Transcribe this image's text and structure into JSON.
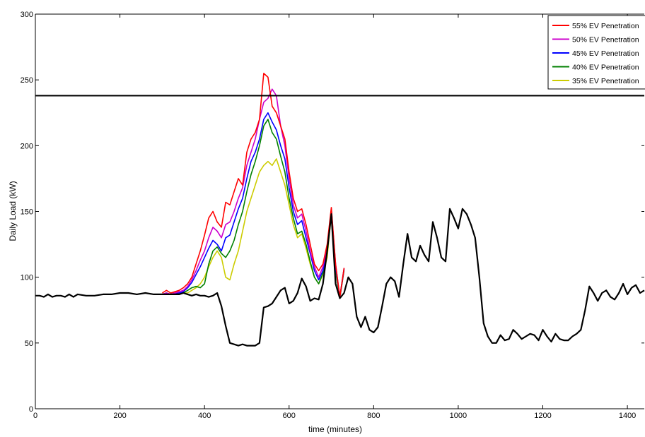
{
  "chart_data": {
    "type": "line",
    "title": "",
    "xlabel": "time (minutes)",
    "ylabel": "Daily Load (kW)",
    "xlim": [
      0,
      1440
    ],
    "ylim": [
      0,
      300
    ],
    "x_ticks": [
      0,
      200,
      400,
      600,
      800,
      1000,
      1200,
      1400
    ],
    "y_ticks": [
      0,
      50,
      100,
      150,
      200,
      250,
      300
    ],
    "grid": false,
    "legend_position": "top-right",
    "threshold": {
      "y": 238,
      "color": "#000000"
    },
    "base_series": {
      "color": "#000000",
      "x": [
        0,
        10,
        20,
        30,
        40,
        50,
        60,
        70,
        80,
        90,
        100,
        120,
        140,
        160,
        180,
        200,
        220,
        240,
        260,
        280,
        300,
        320,
        340,
        350,
        360,
        370,
        380,
        390,
        400,
        410,
        420,
        430,
        440,
        450,
        460,
        470,
        480,
        490,
        500,
        510,
        520,
        530,
        540,
        550,
        560,
        570,
        580,
        590,
        600,
        610,
        620,
        630,
        640,
        650,
        660,
        670,
        680,
        690,
        700,
        710,
        720,
        730,
        740,
        750,
        760,
        770,
        780,
        790,
        800,
        810,
        820,
        830,
        840,
        850,
        860,
        870,
        880,
        890,
        900,
        910,
        920,
        930,
        940,
        950,
        960,
        970,
        980,
        990,
        1000,
        1010,
        1020,
        1030,
        1040,
        1050,
        1060,
        1070,
        1080,
        1090,
        1100,
        1110,
        1120,
        1130,
        1140,
        1150,
        1160,
        1170,
        1180,
        1190,
        1200,
        1210,
        1220,
        1230,
        1240,
        1250,
        1260,
        1270,
        1280,
        1290,
        1300,
        1310,
        1320,
        1330,
        1340,
        1350,
        1360,
        1370,
        1380,
        1390,
        1400,
        1410,
        1420,
        1430,
        1440
      ],
      "y": [
        86,
        86,
        85,
        87,
        85,
        86,
        86,
        85,
        87,
        85,
        87,
        86,
        86,
        87,
        87,
        88,
        88,
        87,
        88,
        87,
        87,
        87,
        87,
        88,
        87,
        86,
        87,
        86,
        86,
        85,
        86,
        88,
        78,
        63,
        50,
        49,
        48,
        49,
        48,
        48,
        48,
        50,
        77,
        78,
        80,
        85,
        90,
        92,
        80,
        82,
        88,
        99,
        93,
        82,
        84,
        83,
        95,
        120,
        148,
        95,
        84,
        88,
        100,
        95,
        70,
        62,
        70,
        60,
        58,
        62,
        78,
        95,
        100,
        97,
        85,
        110,
        133,
        115,
        112,
        124,
        117,
        112,
        142,
        130,
        115,
        112,
        152,
        145,
        137,
        152,
        148,
        140,
        130,
        100,
        65,
        55,
        50,
        50,
        56,
        52,
        53,
        60,
        57,
        53,
        55,
        57,
        56,
        52,
        60,
        55,
        51,
        57,
        53,
        52,
        52,
        55,
        57,
        60,
        75,
        93,
        88,
        82,
        88,
        90,
        85,
        83,
        88,
        95,
        87,
        92,
        94,
        88,
        90
      ]
    },
    "series": [
      {
        "name": "55% EV Penetration",
        "color": "#ff0000",
        "x": [
          300,
          310,
          320,
          330,
          340,
          350,
          360,
          370,
          380,
          390,
          400,
          410,
          420,
          430,
          440,
          450,
          460,
          470,
          480,
          490,
          500,
          510,
          520,
          530,
          540,
          550,
          560,
          570,
          580,
          590,
          600,
          610,
          620,
          630,
          640,
          650,
          660,
          670,
          680,
          690,
          700,
          710,
          720,
          730
        ],
        "y": [
          88,
          90,
          88,
          89,
          90,
          92,
          95,
          100,
          110,
          120,
          132,
          145,
          150,
          142,
          138,
          157,
          155,
          165,
          175,
          170,
          195,
          205,
          210,
          220,
          255,
          252,
          230,
          225,
          215,
          205,
          180,
          160,
          150,
          152,
          140,
          125,
          110,
          105,
          110,
          125,
          153,
          110,
          85,
          107
        ]
      },
      {
        "name": "50% EV Penetration",
        "color": "#cc00cc",
        "x": [
          300,
          310,
          320,
          330,
          340,
          350,
          360,
          370,
          380,
          390,
          400,
          410,
          420,
          430,
          440,
          450,
          460,
          470,
          480,
          490,
          500,
          510,
          520,
          530,
          540,
          550,
          560,
          570,
          580,
          590,
          600,
          610,
          620,
          630,
          640,
          650,
          660,
          670,
          680,
          690,
          700,
          710,
          720,
          730
        ],
        "y": [
          87,
          88,
          87,
          88,
          89,
          90,
          93,
          98,
          105,
          113,
          120,
          130,
          138,
          135,
          130,
          140,
          142,
          150,
          160,
          168,
          185,
          195,
          205,
          220,
          233,
          236,
          243,
          238,
          215,
          200,
          175,
          155,
          145,
          148,
          135,
          120,
          108,
          100,
          108,
          122,
          150,
          110,
          85,
          107
        ]
      },
      {
        "name": "45% EV Penetration",
        "color": "#0000ff",
        "x": [
          300,
          310,
          320,
          330,
          340,
          350,
          360,
          370,
          380,
          390,
          400,
          410,
          420,
          430,
          440,
          450,
          460,
          470,
          480,
          490,
          500,
          510,
          520,
          530,
          540,
          550,
          560,
          570,
          580,
          590,
          600,
          610,
          620,
          630,
          640,
          650,
          660,
          670,
          680,
          690,
          700,
          710,
          720,
          730
        ],
        "y": [
          87,
          88,
          87,
          88,
          88,
          89,
          92,
          96,
          102,
          108,
          115,
          122,
          128,
          125,
          120,
          130,
          132,
          142,
          152,
          160,
          175,
          188,
          195,
          205,
          220,
          225,
          218,
          212,
          200,
          190,
          168,
          150,
          140,
          143,
          130,
          118,
          105,
          98,
          105,
          120,
          152,
          108,
          85,
          106
        ]
      },
      {
        "name": "40% EV Penetration",
        "color": "#008000",
        "x": [
          300,
          310,
          320,
          330,
          340,
          350,
          360,
          370,
          380,
          390,
          400,
          410,
          420,
          430,
          440,
          450,
          460,
          470,
          480,
          490,
          500,
          510,
          520,
          530,
          540,
          550,
          560,
          570,
          580,
          590,
          600,
          610,
          620,
          630,
          640,
          650,
          660,
          670,
          680,
          690,
          700,
          710,
          720,
          730
        ],
        "y": [
          87,
          88,
          87,
          87,
          88,
          88,
          90,
          92,
          93,
          92,
          95,
          110,
          120,
          123,
          118,
          115,
          120,
          128,
          140,
          150,
          165,
          178,
          188,
          200,
          215,
          220,
          210,
          205,
          192,
          180,
          160,
          145,
          133,
          135,
          125,
          112,
          100,
          95,
          103,
          118,
          150,
          105,
          84,
          106
        ]
      },
      {
        "name": "35% EV Penetration",
        "color": "#cccc00",
        "x": [
          300,
          310,
          320,
          330,
          340,
          350,
          360,
          370,
          380,
          390,
          400,
          410,
          420,
          430,
          440,
          450,
          460,
          470,
          480,
          490,
          500,
          510,
          520,
          530,
          540,
          550,
          560,
          570,
          580,
          590,
          600,
          610,
          620,
          630,
          640,
          650,
          660,
          670,
          680,
          690,
          700,
          710,
          720,
          730
        ],
        "y": [
          87,
          87,
          87,
          87,
          87,
          88,
          88,
          90,
          92,
          95,
          100,
          108,
          115,
          120,
          115,
          100,
          98,
          110,
          120,
          135,
          150,
          160,
          170,
          180,
          185,
          188,
          185,
          190,
          180,
          170,
          155,
          140,
          130,
          133,
          122,
          110,
          100,
          95,
          102,
          115,
          148,
          105,
          84,
          105
        ]
      }
    ]
  }
}
